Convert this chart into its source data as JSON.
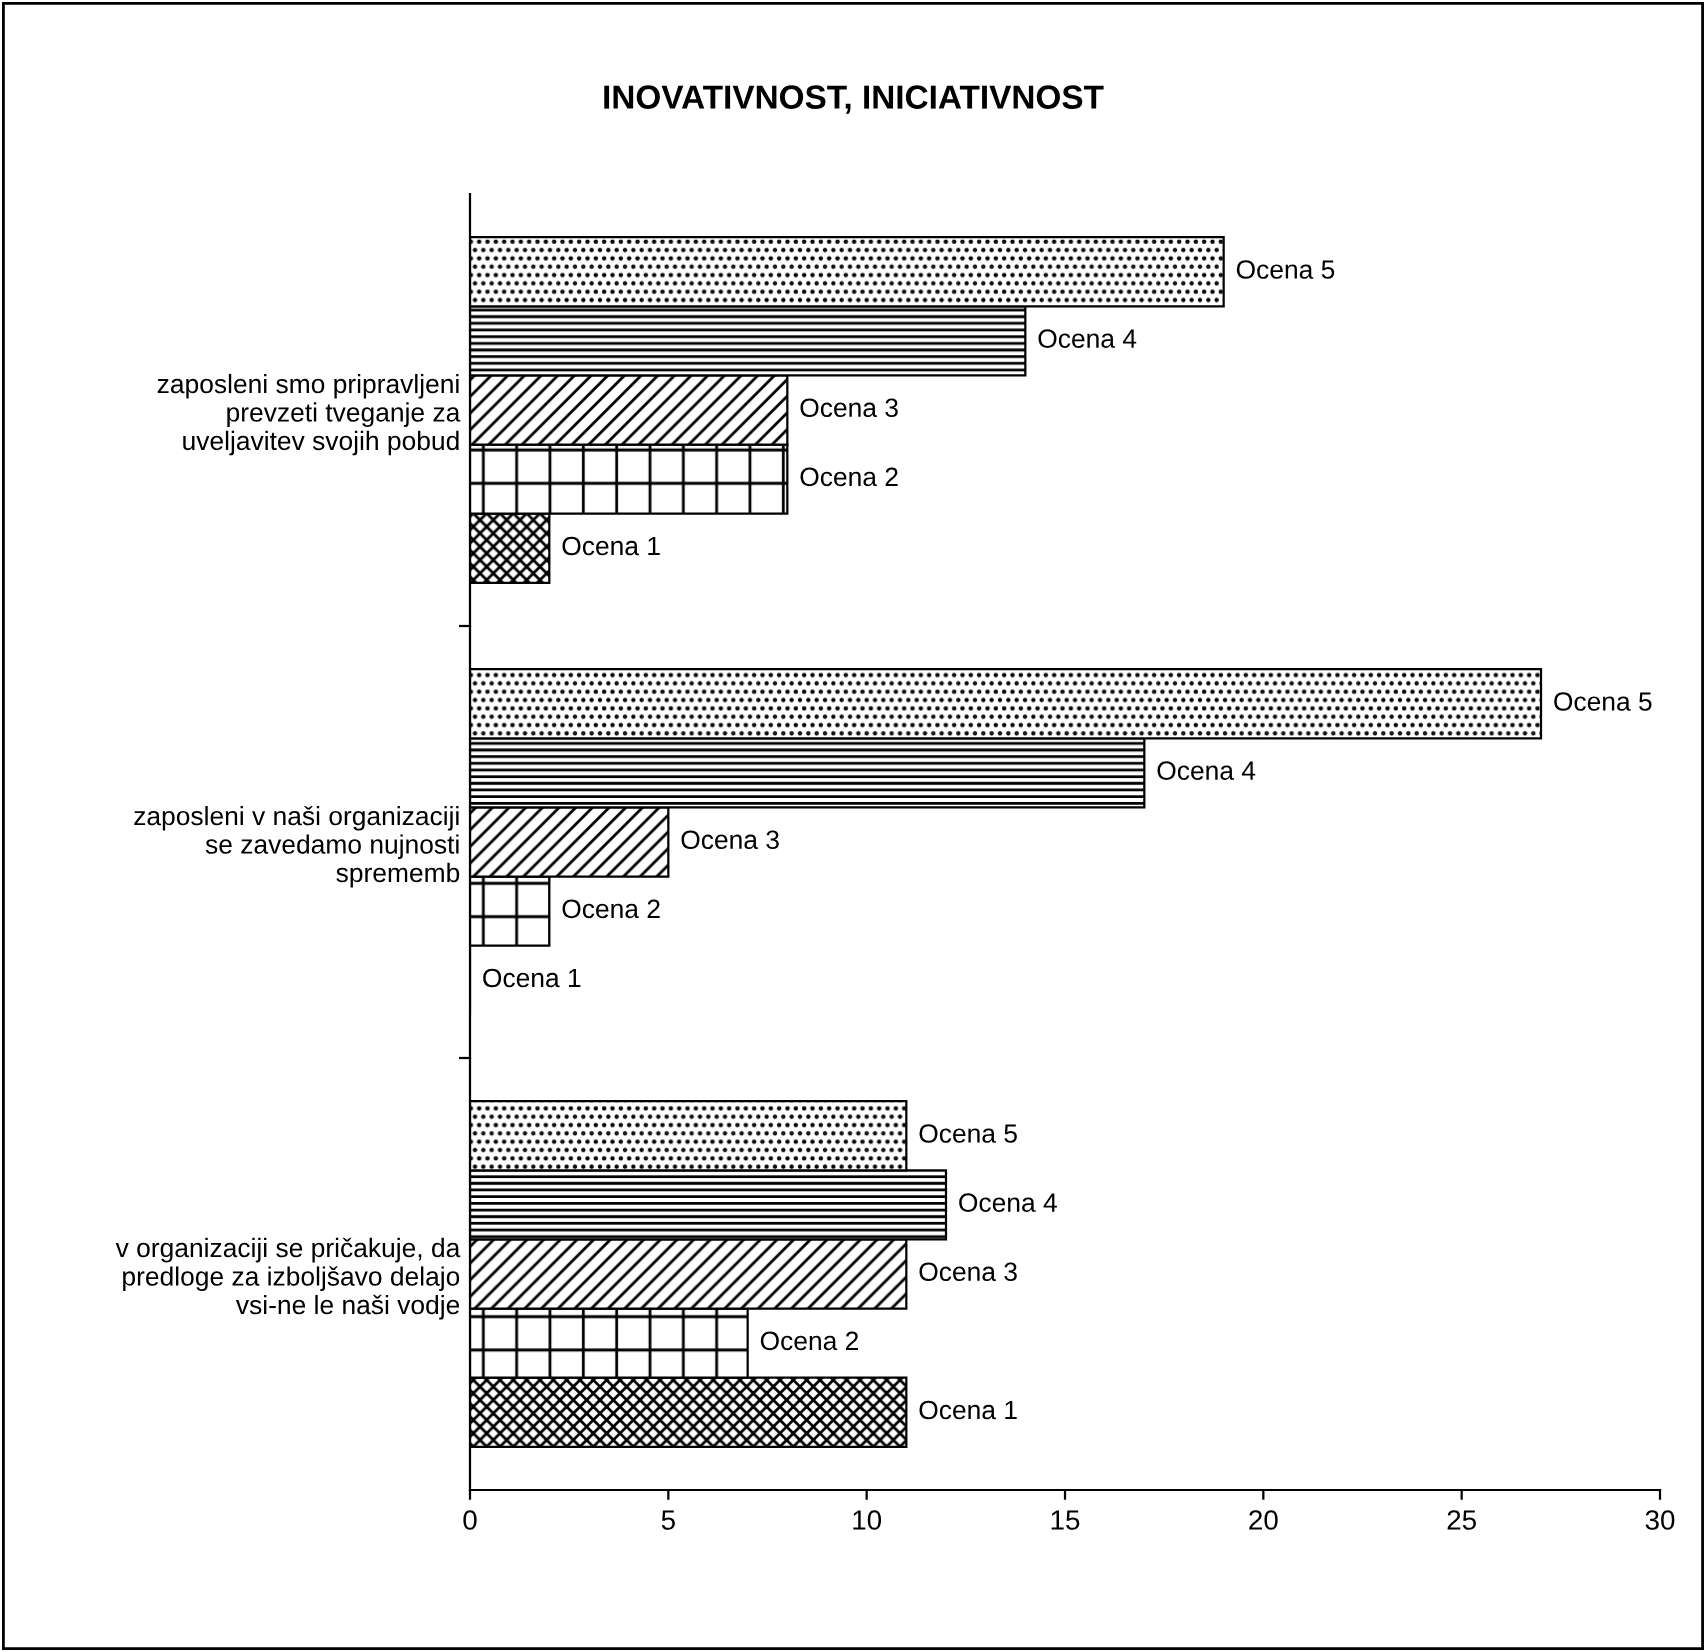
{
  "chart_data": {
    "type": "bar",
    "orientation": "horizontal",
    "title": "INOVATIVNOST, INICIATIVNOST",
    "categories": [
      "zaposleni smo pripravljeni\nprevzeti tveganje za\nuveljavitev svojih pobud",
      "zaposleni v naši organizaciji\nse zavedamo nujnosti\nsprememb",
      "v organizaciji se pričakuje, da\npredloge za izboljšavo delajo\nvsi-ne le naši vodje"
    ],
    "series": [
      {
        "name": "Ocena 1",
        "color": "#000000",
        "values": [
          2,
          0,
          11
        ]
      },
      {
        "name": "Ocena 2",
        "color": "#000000",
        "values": [
          8,
          2,
          7
        ]
      },
      {
        "name": "Ocena 3",
        "color": "#000000",
        "values": [
          8,
          5,
          11
        ]
      },
      {
        "name": "Ocena 4",
        "color": "#000000",
        "values": [
          14,
          17,
          12
        ]
      },
      {
        "name": "Ocena 5",
        "color": "#000000",
        "values": [
          19,
          27,
          11
        ]
      }
    ],
    "xlim": [
      0,
      30
    ],
    "xticks": [
      0,
      5,
      10,
      15,
      20,
      25,
      30
    ],
    "grid": false,
    "legend": false
  }
}
